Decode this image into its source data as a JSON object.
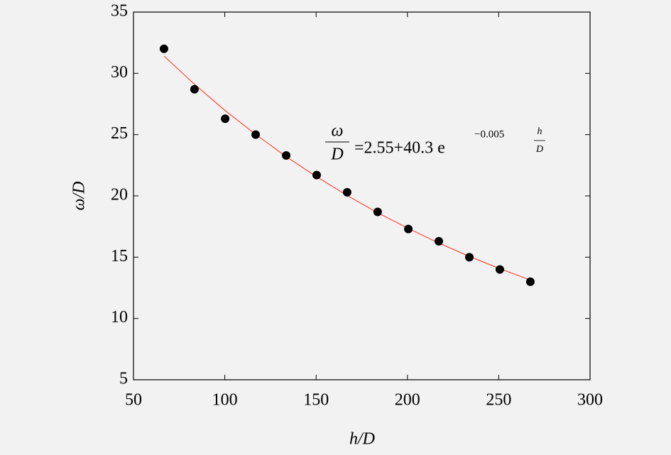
{
  "chart_data": {
    "type": "scatter",
    "x_label": "h/D",
    "y_label": "ω/D",
    "x": [
      66.7,
      83.4,
      100.2,
      116.9,
      133.6,
      150.3,
      167.0,
      183.7,
      200.5,
      217.2,
      233.9,
      250.6,
      267.3
    ],
    "values": [
      32,
      28.7,
      26.3,
      25,
      23.3,
      21.7,
      20.3,
      18.7,
      17.3,
      16.3,
      15,
      14,
      13
    ],
    "color": "#000000",
    "fit": {
      "x": [
        66.7,
        83.3,
        100,
        116.7,
        133.3,
        150,
        166.7,
        183.3,
        200,
        216.7,
        233.3,
        250,
        266.7
      ],
      "values": [
        31.42,
        29.12,
        26.99,
        25.04,
        23.24,
        21.59,
        20.06,
        18.66,
        17.38,
        16.19,
        15.1,
        14.1,
        13.17
      ],
      "color": "#ff2a1a"
    },
    "annotation": {
      "lhs_num": "ω",
      "lhs_den": "D",
      "rhs": "=2.55+40.3 e",
      "exponent": "−0.005",
      "exp_num": "h",
      "exp_den": "D"
    },
    "xlim": [
      50,
      300
    ],
    "xticks": [
      50,
      100,
      150,
      200,
      250,
      300
    ],
    "ylim": [
      5,
      35
    ],
    "yticks": [
      5,
      10,
      15,
      20,
      25,
      30,
      35
    ]
  }
}
